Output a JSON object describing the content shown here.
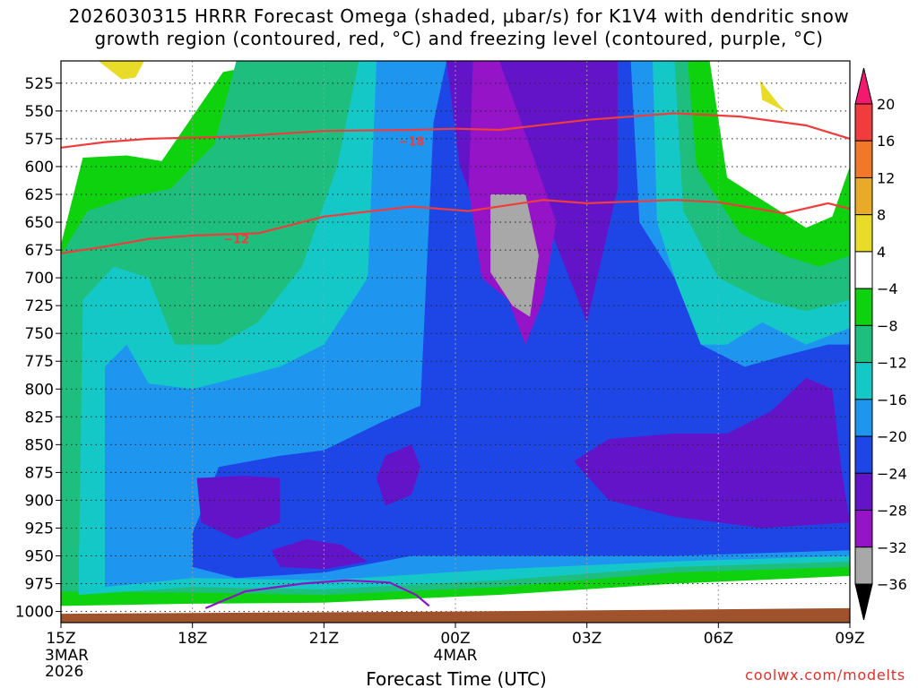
{
  "title_line1": "2026030315 HRRR Forecast Omega (shaded, μbar/s) for K1V4 with dendritic snow",
  "title_line2": "growth region (contoured, red, °C) and freezing level (contoured, purple, °C)",
  "credit": "coolwx.com/modelts",
  "chart_data": {
    "type": "heatmap",
    "title": "2026030315 HRRR Forecast Omega (shaded, μbar/s) for K1V4 with dendritic snow growth region (contoured, red, °C) and freezing level (contoured, purple, °C)",
    "xlabel": "Forecast Time (UTC)",
    "ylabel": "",
    "x_range_hours": [
      0,
      18
    ],
    "x_ticks": [
      {
        "hour": 0,
        "label": "15Z",
        "sub1": "3MAR",
        "sub2": "2026"
      },
      {
        "hour": 3,
        "label": "18Z"
      },
      {
        "hour": 6,
        "label": "21Z"
      },
      {
        "hour": 9,
        "label": "00Z",
        "sub1": "4MAR"
      },
      {
        "hour": 12,
        "label": "03Z"
      },
      {
        "hour": 15,
        "label": "06Z"
      },
      {
        "hour": 18,
        "label": "09Z"
      }
    ],
    "y_range_hpa": [
      1010,
      505
    ],
    "y_ticks": [
      525,
      550,
      575,
      600,
      625,
      650,
      675,
      700,
      725,
      750,
      775,
      800,
      825,
      850,
      875,
      900,
      925,
      950,
      975,
      1000
    ],
    "colorbar": {
      "labels": [
        "20",
        "16",
        "12",
        "8",
        "4",
        "−4",
        "−8",
        "−12",
        "−16",
        "−20",
        "−24",
        "−28",
        "−32",
        "−36"
      ],
      "colors": [
        "#f21a6e",
        "#f03c3c",
        "#f07828",
        "#e8aa28",
        "#e8dc28",
        "#ffffff",
        "#0ed20e",
        "#1ebf7e",
        "#14c8c8",
        "#1e96f0",
        "#1e46e6",
        "#6414c8",
        "#9614c8",
        "#a8a8a8",
        "#000000"
      ]
    },
    "filled_regions": [
      {
        "level": "-8 to -4",
        "color": "#0ed20e",
        "pts": [
          [
            0,
            1000
          ],
          [
            0,
            670
          ],
          [
            0.5,
            592
          ],
          [
            1.5,
            590
          ],
          [
            2.3,
            595
          ],
          [
            3.7,
            515
          ],
          [
            5,
            505
          ],
          [
            9.5,
            505
          ],
          [
            12.5,
            505
          ],
          [
            14.8,
            505
          ],
          [
            15.2,
            610
          ],
          [
            16,
            630
          ],
          [
            17,
            655
          ],
          [
            17.6,
            645
          ],
          [
            18,
            600
          ],
          [
            18,
            968
          ],
          [
            14,
            975
          ],
          [
            10,
            985
          ],
          [
            6,
            992
          ],
          [
            3,
            993
          ],
          [
            0,
            995
          ]
        ]
      },
      {
        "level": "-12 to -8",
        "color": "#1ebf7e",
        "pts": [
          [
            0,
            990
          ],
          [
            0,
            680
          ],
          [
            0.6,
            640
          ],
          [
            1.5,
            628
          ],
          [
            2.5,
            620
          ],
          [
            3.5,
            580
          ],
          [
            4,
            505
          ],
          [
            8.5,
            505
          ],
          [
            12.5,
            505
          ],
          [
            14.3,
            505
          ],
          [
            14.5,
            600
          ],
          [
            15.5,
            660
          ],
          [
            16.5,
            680
          ],
          [
            17.3,
            690
          ],
          [
            18,
            680
          ],
          [
            18,
            960
          ],
          [
            14,
            965
          ],
          [
            10,
            978
          ],
          [
            6,
            985
          ],
          [
            3,
            983
          ],
          [
            0,
            982
          ]
        ]
      },
      {
        "level": "-16 to -12",
        "color": "#14c8c8",
        "pts": [
          [
            0.4,
            985
          ],
          [
            0.5,
            720
          ],
          [
            1.2,
            690
          ],
          [
            2,
            700
          ],
          [
            2.6,
            760
          ],
          [
            3.6,
            760
          ],
          [
            4.5,
            740
          ],
          [
            5.5,
            690
          ],
          [
            6.3,
            600
          ],
          [
            6.8,
            505
          ],
          [
            8.5,
            505
          ],
          [
            12.5,
            505
          ],
          [
            14,
            505
          ],
          [
            14.2,
            640
          ],
          [
            15,
            700
          ],
          [
            16,
            720
          ],
          [
            17,
            730
          ],
          [
            18,
            720
          ],
          [
            18,
            955
          ],
          [
            14,
            960
          ],
          [
            10,
            972
          ],
          [
            6,
            980
          ],
          [
            3,
            978
          ]
        ]
      },
      {
        "level": "-20 to -16",
        "color": "#1e96f0",
        "pts": [
          [
            1,
            978
          ],
          [
            1,
            780
          ],
          [
            1.5,
            760
          ],
          [
            2,
            795
          ],
          [
            3,
            800
          ],
          [
            4,
            790
          ],
          [
            5,
            780
          ],
          [
            6,
            760
          ],
          [
            7,
            700
          ],
          [
            7.2,
            505
          ],
          [
            8.5,
            505
          ],
          [
            12.5,
            505
          ],
          [
            13.5,
            505
          ],
          [
            13.6,
            650
          ],
          [
            14.5,
            760
          ],
          [
            15.2,
            760
          ],
          [
            16,
            740
          ],
          [
            17,
            760
          ],
          [
            18,
            745
          ],
          [
            18,
            950
          ],
          [
            14,
            955
          ],
          [
            10,
            962
          ],
          [
            6,
            972
          ],
          [
            3,
            970
          ]
        ]
      },
      {
        "level": "-24 to -20",
        "color": "#1e46e6",
        "pts": [
          [
            3,
            930
          ],
          [
            3.6,
            870
          ],
          [
            5,
            860
          ],
          [
            6,
            855
          ],
          [
            7.3,
            830
          ],
          [
            8.2,
            815
          ],
          [
            8.5,
            560
          ],
          [
            8.8,
            505
          ],
          [
            12.5,
            505
          ],
          [
            13,
            505
          ],
          [
            13.2,
            650
          ],
          [
            14,
            700
          ],
          [
            14.6,
            760
          ],
          [
            15.6,
            780
          ],
          [
            16.5,
            770
          ],
          [
            17.5,
            760
          ],
          [
            18,
            760
          ],
          [
            18,
            945
          ],
          [
            14,
            950
          ],
          [
            10,
            950
          ],
          [
            8,
            950
          ],
          [
            6,
            965
          ],
          [
            4,
            970
          ],
          [
            3,
            960
          ]
        ]
      },
      {
        "level": "-28 to -24",
        "color": "#6414c8",
        "pts": [
          [
            8.8,
            505
          ],
          [
            12.7,
            505
          ],
          [
            12.7,
            620
          ],
          [
            12,
            740
          ],
          [
            11,
            640
          ],
          [
            10.4,
            560
          ],
          [
            9.9,
            600
          ],
          [
            9.5,
            640
          ],
          [
            9.1,
            600
          ]
        ]
      },
      {
        "level": "-28 to -24",
        "color": "#6414c8",
        "pts": [
          [
            3.1,
            880
          ],
          [
            4.2,
            878
          ],
          [
            5,
            880
          ],
          [
            5,
            920
          ],
          [
            4,
            935
          ],
          [
            3.2,
            920
          ]
        ]
      },
      {
        "level": "-28 to -24",
        "color": "#6414c8",
        "pts": [
          [
            4.8,
            945
          ],
          [
            5.6,
            935
          ],
          [
            6.4,
            940
          ],
          [
            7,
            955
          ],
          [
            6,
            962
          ],
          [
            5,
            960
          ]
        ]
      },
      {
        "level": "-28 to -24",
        "color": "#6414c8",
        "pts": [
          [
            7.4,
            860
          ],
          [
            8,
            850
          ],
          [
            8.2,
            870
          ],
          [
            8,
            895
          ],
          [
            7.4,
            905
          ],
          [
            7.2,
            880
          ]
        ]
      },
      {
        "level": "-28 to -24",
        "color": "#6414c8",
        "pts": [
          [
            11.7,
            865
          ],
          [
            12.5,
            845
          ],
          [
            14,
            840
          ],
          [
            15.2,
            840
          ],
          [
            16.2,
            820
          ],
          [
            17,
            790
          ],
          [
            17.6,
            800
          ],
          [
            17.8,
            870
          ],
          [
            18,
            920
          ],
          [
            16,
            925
          ],
          [
            14,
            915
          ],
          [
            12.5,
            900
          ]
        ]
      },
      {
        "level": "-32 to -28",
        "color": "#9614c8",
        "pts": [
          [
            9.4,
            505
          ],
          [
            10,
            505
          ],
          [
            10.5,
            560
          ],
          [
            11.3,
            650
          ],
          [
            11,
            720
          ],
          [
            10.6,
            760
          ],
          [
            10.2,
            720
          ],
          [
            9.6,
            700
          ],
          [
            9.3,
            620
          ]
        ]
      },
      {
        "level": "-36 to -32",
        "color": "#a8a8a8",
        "pts": [
          [
            9.8,
            625
          ],
          [
            10.6,
            625
          ],
          [
            10.9,
            680
          ],
          [
            10.7,
            735
          ],
          [
            10.3,
            725
          ],
          [
            9.8,
            695
          ]
        ]
      },
      {
        "level": "4 to 8",
        "color": "#e8dc28",
        "pts": [
          [
            15.9,
            505
          ],
          [
            18,
            505
          ],
          [
            17.6,
            555
          ],
          [
            17.4,
            560
          ],
          [
            16.5,
            550
          ],
          [
            16,
            540
          ]
        ]
      },
      {
        "level": "8 to 12",
        "color": "#e8aa28",
        "pts": [
          [
            16.4,
            505
          ],
          [
            17.2,
            505
          ],
          [
            17.1,
            530
          ],
          [
            16.7,
            535
          ],
          [
            16.4,
            520
          ]
        ]
      },
      {
        "level": "4 to 8",
        "color": "#e8dc28",
        "pts": [
          [
            0.85,
            505
          ],
          [
            1.9,
            505
          ],
          [
            1.7,
            520
          ],
          [
            1.3,
            522
          ]
        ]
      }
    ],
    "white_regions": [
      {
        "level": "-4 to 4",
        "pts": [
          [
            15.6,
            505
          ],
          [
            18,
            505
          ],
          [
            18,
            565
          ],
          [
            17.7,
            610
          ],
          [
            17.2,
            575
          ],
          [
            16.4,
            545
          ],
          [
            15.9,
            520
          ]
        ]
      },
      {
        "level": "-4 to 4",
        "pts": [
          [
            0,
            505
          ],
          [
            0.85,
            505
          ],
          [
            1.6,
            528
          ],
          [
            2.1,
            505
          ],
          [
            3.2,
            505
          ],
          [
            2.9,
            545
          ],
          [
            2.3,
            575
          ],
          [
            1.8,
            583
          ],
          [
            1.4,
            570
          ],
          [
            0.9,
            585
          ],
          [
            0.5,
            590
          ],
          [
            0,
            605
          ]
        ]
      }
    ],
    "ground_color": "#a0522d",
    "ground": [
      [
        0,
        1002
      ],
      [
        9,
        1000
      ],
      [
        18,
        997
      ]
    ],
    "series": [
      {
        "name": "-18 °C (dendritic growth top)",
        "color": "#f03c3c",
        "label": "−18",
        "label_at": [
          8,
          577
        ],
        "points": [
          [
            0,
            583
          ],
          [
            1,
            578
          ],
          [
            2,
            575
          ],
          [
            4,
            573
          ],
          [
            6,
            568
          ],
          [
            8,
            567
          ],
          [
            9,
            566
          ],
          [
            10,
            567
          ],
          [
            12,
            558
          ],
          [
            13,
            555
          ],
          [
            14,
            552
          ],
          [
            15.5,
            555
          ],
          [
            17,
            563
          ],
          [
            18,
            575
          ]
        ]
      },
      {
        "name": "-12 °C (dendritic growth bottom)",
        "color": "#f03c3c",
        "label": "−12",
        "label_at": [
          4,
          665
        ],
        "points": [
          [
            0,
            678
          ],
          [
            1,
            672
          ],
          [
            2,
            665
          ],
          [
            3,
            662
          ],
          [
            4.5,
            660
          ],
          [
            6,
            645
          ],
          [
            8,
            636
          ],
          [
            9.3,
            640
          ],
          [
            11,
            630
          ],
          [
            12,
            633
          ],
          [
            14,
            630
          ],
          [
            15,
            632
          ],
          [
            16.5,
            642
          ],
          [
            17.5,
            633
          ],
          [
            18,
            638
          ]
        ]
      },
      {
        "name": "0 °C (freezing level)",
        "color": "#8c14c8",
        "label": "",
        "points": [
          [
            3.3,
            997
          ],
          [
            4.2,
            982
          ],
          [
            5.5,
            975
          ],
          [
            6.5,
            972
          ],
          [
            7.5,
            974
          ],
          [
            8.1,
            985
          ],
          [
            8.4,
            995
          ]
        ]
      }
    ]
  }
}
